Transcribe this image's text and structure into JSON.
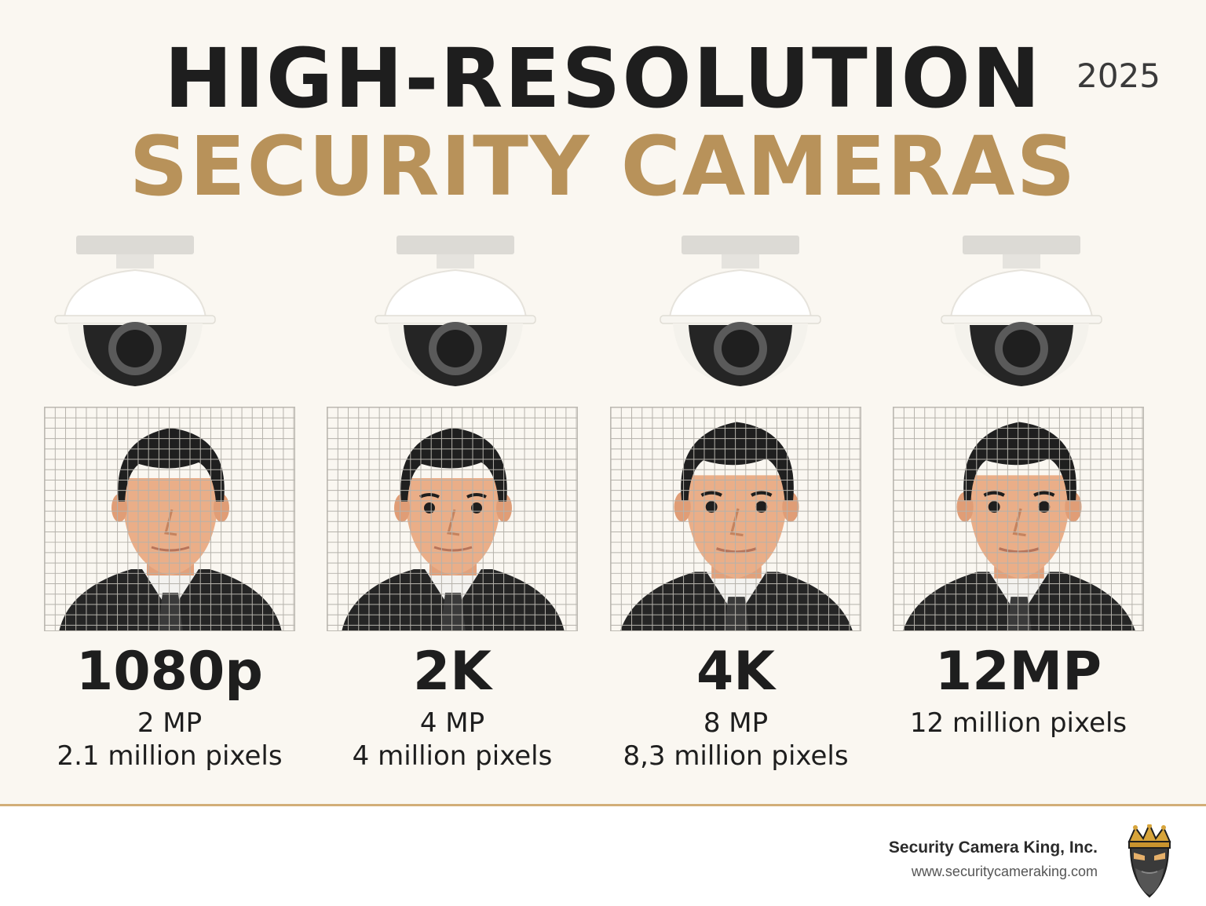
{
  "header": {
    "title_line1": "HIGH-RESOLUTION",
    "title_line2": "SECURITY CAMERAS",
    "year": "2025"
  },
  "resolutions": [
    {
      "label": "1080p",
      "megapixels": "2 MP",
      "pixels": "2.1 million pixels"
    },
    {
      "label": "2K",
      "megapixels": "4 MP",
      "pixels": "4 million pixels"
    },
    {
      "label": "4K",
      "megapixels": "8 MP",
      "pixels": "8,3 million pixels"
    },
    {
      "label": "12MP",
      "megapixels": "",
      "pixels": "12 million pixels"
    }
  ],
  "footer": {
    "company": "Security Camera King, Inc.",
    "website": "www.securitycameraking.com"
  },
  "colors": {
    "background": "#faf7f1",
    "title_dark": "#1e1e1e",
    "title_gold": "#b8925a",
    "divider": "#d2ae78",
    "skin": "#e9ac85",
    "hair": "#1f1f1f",
    "suit": "#252525"
  },
  "icons": [
    "dome-camera-icon",
    "portrait-face-icon",
    "king-mascot-logo"
  ]
}
